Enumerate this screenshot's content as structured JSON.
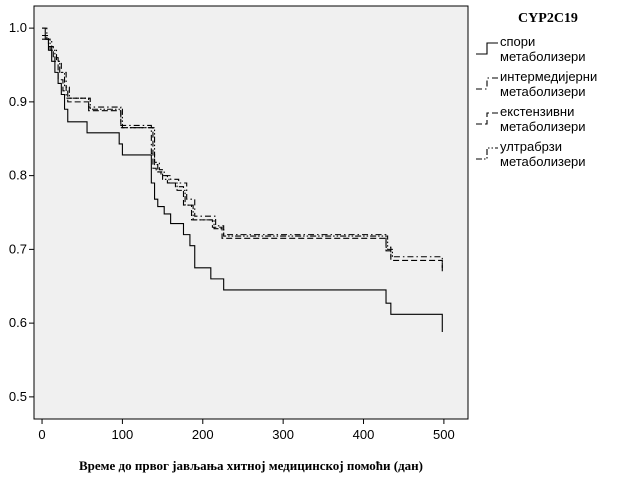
{
  "chart_data": {
    "type": "line",
    "step": true,
    "xlabel": "Време до првог јављања хитној медицинској помоћи (дан)",
    "ylabel": "",
    "xlim": [
      -10,
      530
    ],
    "ylim": [
      0.47,
      1.03
    ],
    "xticks": [
      "0",
      "100",
      "200",
      "300",
      "400",
      "500"
    ],
    "xtick_values": [
      0,
      100,
      200,
      300,
      400,
      500
    ],
    "yticks": [
      "0.5",
      "0.6",
      "0.7",
      "0.8",
      "0.9",
      "1.0"
    ],
    "ytick_values": [
      0.5,
      0.6,
      0.7,
      0.8,
      0.9,
      1.0
    ],
    "legend": {
      "title": "CYP2C19",
      "placement": "right",
      "entries": [
        {
          "lines": [
            "спори",
            "метаболизери"
          ],
          "dash": "solid"
        },
        {
          "lines": [
            "интермедијерни",
            "метаболизери"
          ],
          "dash": "dash-dot"
        },
        {
          "lines": [
            "екстензивни",
            "метаболизери"
          ],
          "dash": "dash"
        },
        {
          "lines": [
            "ултрабрзи",
            "метаболизери"
          ],
          "dash": "dash-dot-dot"
        }
      ]
    },
    "series": [
      {
        "name": "спори метаболизери",
        "dash": "solid",
        "x": [
          0,
          4,
          8,
          12,
          16,
          20,
          24,
          28,
          32,
          56,
          96,
          100,
          136,
          140,
          144,
          152,
          160,
          176,
          184,
          190,
          210,
          226,
          428,
          434,
          498
        ],
        "y": [
          1.0,
          0.985,
          0.97,
          0.955,
          0.94,
          0.925,
          0.91,
          0.89,
          0.873,
          0.858,
          0.843,
          0.828,
          0.79,
          0.768,
          0.758,
          0.748,
          0.735,
          0.72,
          0.705,
          0.675,
          0.66,
          0.645,
          0.627,
          0.612,
          0.588
        ]
      },
      {
        "name": "интермедијерни метаболизери",
        "dash": "dash-dot",
        "x": [
          0,
          6,
          12,
          18,
          24,
          30,
          58,
          98,
          136,
          140,
          146,
          152,
          160,
          170,
          180,
          190,
          216,
          226,
          428,
          434,
          498
        ],
        "y": [
          1.0,
          0.985,
          0.97,
          0.955,
          0.94,
          0.905,
          0.893,
          0.868,
          0.83,
          0.818,
          0.808,
          0.8,
          0.795,
          0.79,
          0.768,
          0.745,
          0.732,
          0.72,
          0.703,
          0.69,
          0.675
        ]
      },
      {
        "name": "екстензивни метаболизери",
        "dash": "dash",
        "x": [
          0,
          8,
          14,
          20,
          26,
          32,
          58,
          98,
          138,
          142,
          148,
          156,
          166,
          176,
          186,
          212,
          224,
          428,
          434,
          498
        ],
        "y": [
          0.99,
          0.975,
          0.96,
          0.93,
          0.915,
          0.9,
          0.888,
          0.865,
          0.81,
          0.805,
          0.8,
          0.79,
          0.785,
          0.76,
          0.74,
          0.73,
          0.715,
          0.698,
          0.685,
          0.67
        ]
      },
      {
        "name": "ултрабрзи метаболизери",
        "dash": "dash-dot-dot",
        "x": [
          0,
          10,
          16,
          22,
          28,
          34,
          60,
          100,
          140,
          144,
          150,
          158,
          168,
          178,
          188,
          214,
          226,
          430,
          436
        ],
        "y": [
          0.985,
          0.97,
          0.955,
          0.94,
          0.92,
          0.905,
          0.89,
          0.865,
          0.815,
          0.805,
          0.795,
          0.79,
          0.78,
          0.76,
          0.74,
          0.728,
          0.718,
          0.7,
          0.688
        ]
      }
    ]
  }
}
